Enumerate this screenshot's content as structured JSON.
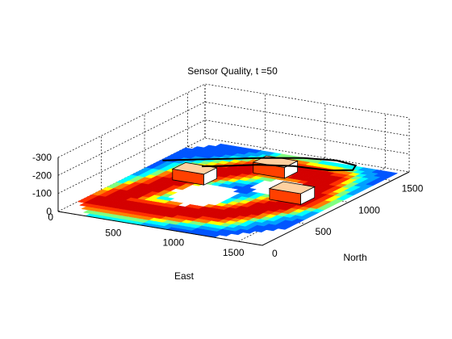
{
  "chart_data": {
    "type": "surface-3d",
    "title": "Sensor Quality, t =50",
    "xlabel": "East",
    "ylabel": "North",
    "zlabel": "",
    "xlim": [
      0,
      1700
    ],
    "ylim": [
      0,
      1700
    ],
    "zlim": [
      -300,
      0
    ],
    "x_ticks": [
      500,
      1000,
      1500
    ],
    "y_ticks": [
      0,
      500,
      1000,
      1500
    ],
    "z_ticks": [
      0,
      -100,
      -200,
      -300
    ],
    "x_tick_labels": [
      "500",
      "1000",
      "1500"
    ],
    "y_tick_labels": [
      "0",
      "500",
      "1000",
      "1500"
    ],
    "z_tick_labels": [
      "0",
      "-100",
      "-200",
      "-300"
    ],
    "origin_label": "0",
    "grid": true,
    "colormap": "jet",
    "colors": {
      "high": "#d40000",
      "mid_high": "#ff8000",
      "mid": "#ffff00",
      "mid_low": "#00ffff",
      "low": "#0055ff",
      "empty": "#ffffff"
    },
    "buildings": [
      {
        "name": "building-1",
        "x": 320,
        "y": 880,
        "w": 260,
        "d": 150,
        "h": 60
      },
      {
        "name": "building-2",
        "x": 740,
        "y": 1230,
        "w": 260,
        "d": 150,
        "h": 60
      },
      {
        "name": "building-3",
        "x": 1170,
        "y": 820,
        "w": 260,
        "d": 160,
        "h": 60
      }
    ],
    "trajectory": [
      [
        150,
        1000
      ],
      [
        340,
        1110
      ],
      [
        560,
        1230
      ],
      [
        760,
        1340
      ],
      [
        1000,
        1450
      ],
      [
        1240,
        1500
      ],
      [
        1420,
        1470
      ],
      [
        1460,
        1380
      ],
      [
        1320,
        1310
      ],
      [
        1040,
        1280
      ],
      [
        800,
        1200
      ],
      [
        600,
        1080
      ],
      [
        470,
        1010
      ]
    ]
  }
}
